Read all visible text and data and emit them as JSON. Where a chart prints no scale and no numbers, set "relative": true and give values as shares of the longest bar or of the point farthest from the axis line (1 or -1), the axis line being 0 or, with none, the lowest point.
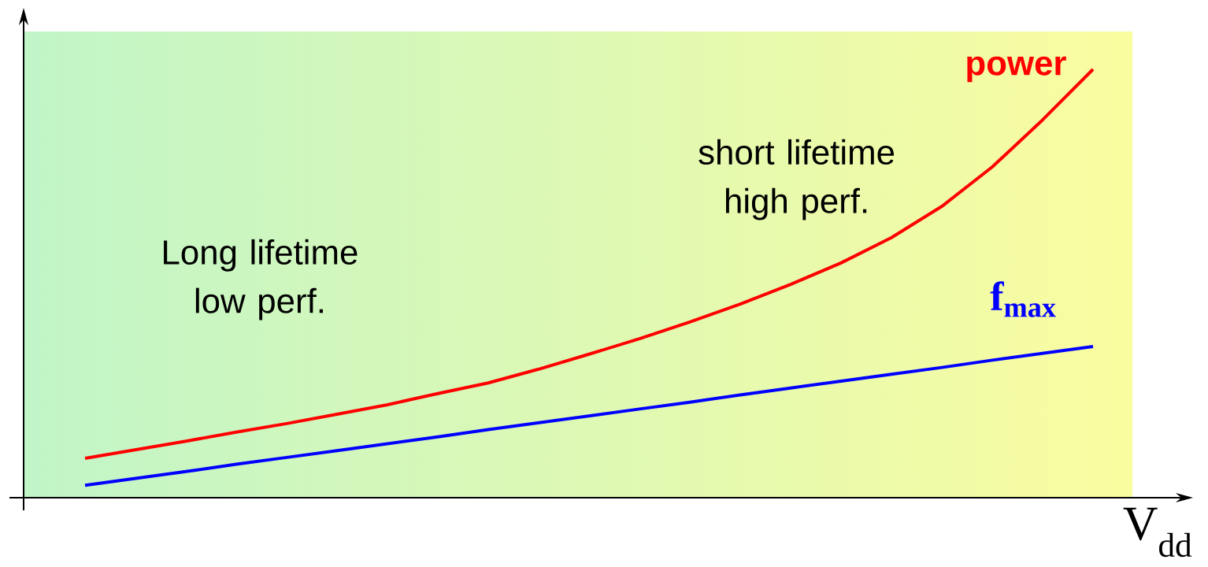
{
  "chart_data": {
    "type": "line",
    "relative": true,
    "xlabel": "V$_{dd}$",
    "categories": [
      null,
      null,
      null,
      null,
      null,
      null,
      null,
      null,
      null,
      null,
      null,
      null,
      null,
      null,
      null,
      null,
      null,
      null,
      null,
      null,
      null
    ],
    "series": [
      {
        "name": "power",
        "color": "#ff0000",
        "values": [
          0.092,
          0.112,
          0.132,
          0.153,
          0.173,
          0.195,
          0.217,
          0.243,
          0.268,
          0.3,
          0.335,
          0.371,
          0.41,
          0.452,
          0.498,
          0.548,
          0.607,
          0.68,
          0.772,
          0.882,
          1
        ]
      },
      {
        "name": "f$_{max}$",
        "color": "#0000ff",
        "values": [
          0.029,
          0.045,
          0.061,
          0.078,
          0.094,
          0.11,
          0.126,
          0.142,
          0.159,
          0.175,
          0.191,
          0.207,
          0.223,
          0.24,
          0.256,
          0.272,
          0.288,
          0.304,
          0.321,
          0.337,
          0.353
        ]
      }
    ],
    "annotations": [
      "Long lifetime low perf.",
      "short lifetime high perf."
    ]
  }
}
